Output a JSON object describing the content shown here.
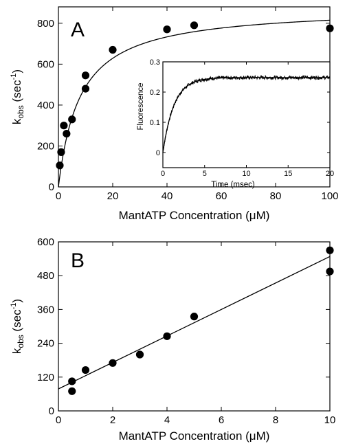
{
  "chart_data": [
    {
      "type": "scatter",
      "panel_label": "A",
      "xlabel": "MantATP Concentration (μM)",
      "ylabel_main": "k",
      "ylabel_sub": "obs",
      "ylabel_unit": " (sec",
      "ylabel_sup": "-1",
      "ylabel_close": ")",
      "xlim": [
        0,
        100
      ],
      "ylim": [
        0,
        880
      ],
      "xticks": [
        0,
        20,
        40,
        60,
        80,
        100
      ],
      "yticks": [
        0,
        200,
        400,
        600,
        800
      ],
      "points": [
        {
          "x": 0.5,
          "y": 105
        },
        {
          "x": 1,
          "y": 170
        },
        {
          "x": 2,
          "y": 300
        },
        {
          "x": 3,
          "y": 260
        },
        {
          "x": 5,
          "y": 330
        },
        {
          "x": 10,
          "y": 545
        },
        {
          "x": 10,
          "y": 480
        },
        {
          "x": 20,
          "y": 670
        },
        {
          "x": 40,
          "y": 770
        },
        {
          "x": 50,
          "y": 790
        },
        {
          "x": 100,
          "y": 775
        }
      ],
      "fit": {
        "model": "hyperbola",
        "k0": 0,
        "kmax": 880,
        "K": 8
      },
      "inset": {
        "type": "line",
        "xlabel": "Time (msec)",
        "ylabel": "Fluorescence",
        "xlim": [
          0,
          20
        ],
        "ylim": [
          -0.05,
          0.3
        ],
        "xticks": [
          0,
          5,
          10,
          15,
          20
        ],
        "yticks": [
          0,
          0.1,
          0.2,
          0.3
        ],
        "ytick_labels": [
          "0",
          "0.1",
          "0.2",
          "0.3"
        ],
        "fit": {
          "model": "single-exponential",
          "amplitude": 0.248,
          "rate_per_ms": 0.75
        }
      }
    },
    {
      "type": "scatter",
      "panel_label": "B",
      "xlabel": "MantATP Concentration (μM)",
      "ylabel_main": "k",
      "ylabel_sub": "obs",
      "ylabel_unit": " (sec",
      "ylabel_sup": "-1",
      "ylabel_close": ")",
      "xlim": [
        0,
        10
      ],
      "ylim": [
        0,
        600
      ],
      "xticks": [
        0,
        2,
        4,
        6,
        8,
        10
      ],
      "yticks": [
        0,
        120,
        240,
        360,
        480,
        600
      ],
      "points": [
        {
          "x": 0.5,
          "y": 105
        },
        {
          "x": 0.5,
          "y": 70
        },
        {
          "x": 1,
          "y": 145
        },
        {
          "x": 2,
          "y": 170
        },
        {
          "x": 3,
          "y": 200
        },
        {
          "x": 4,
          "y": 265
        },
        {
          "x": 5,
          "y": 335
        },
        {
          "x": 10,
          "y": 570
        },
        {
          "x": 10,
          "y": 495
        }
      ],
      "fit": {
        "model": "linear",
        "slope": 47,
        "intercept": 78
      }
    }
  ]
}
